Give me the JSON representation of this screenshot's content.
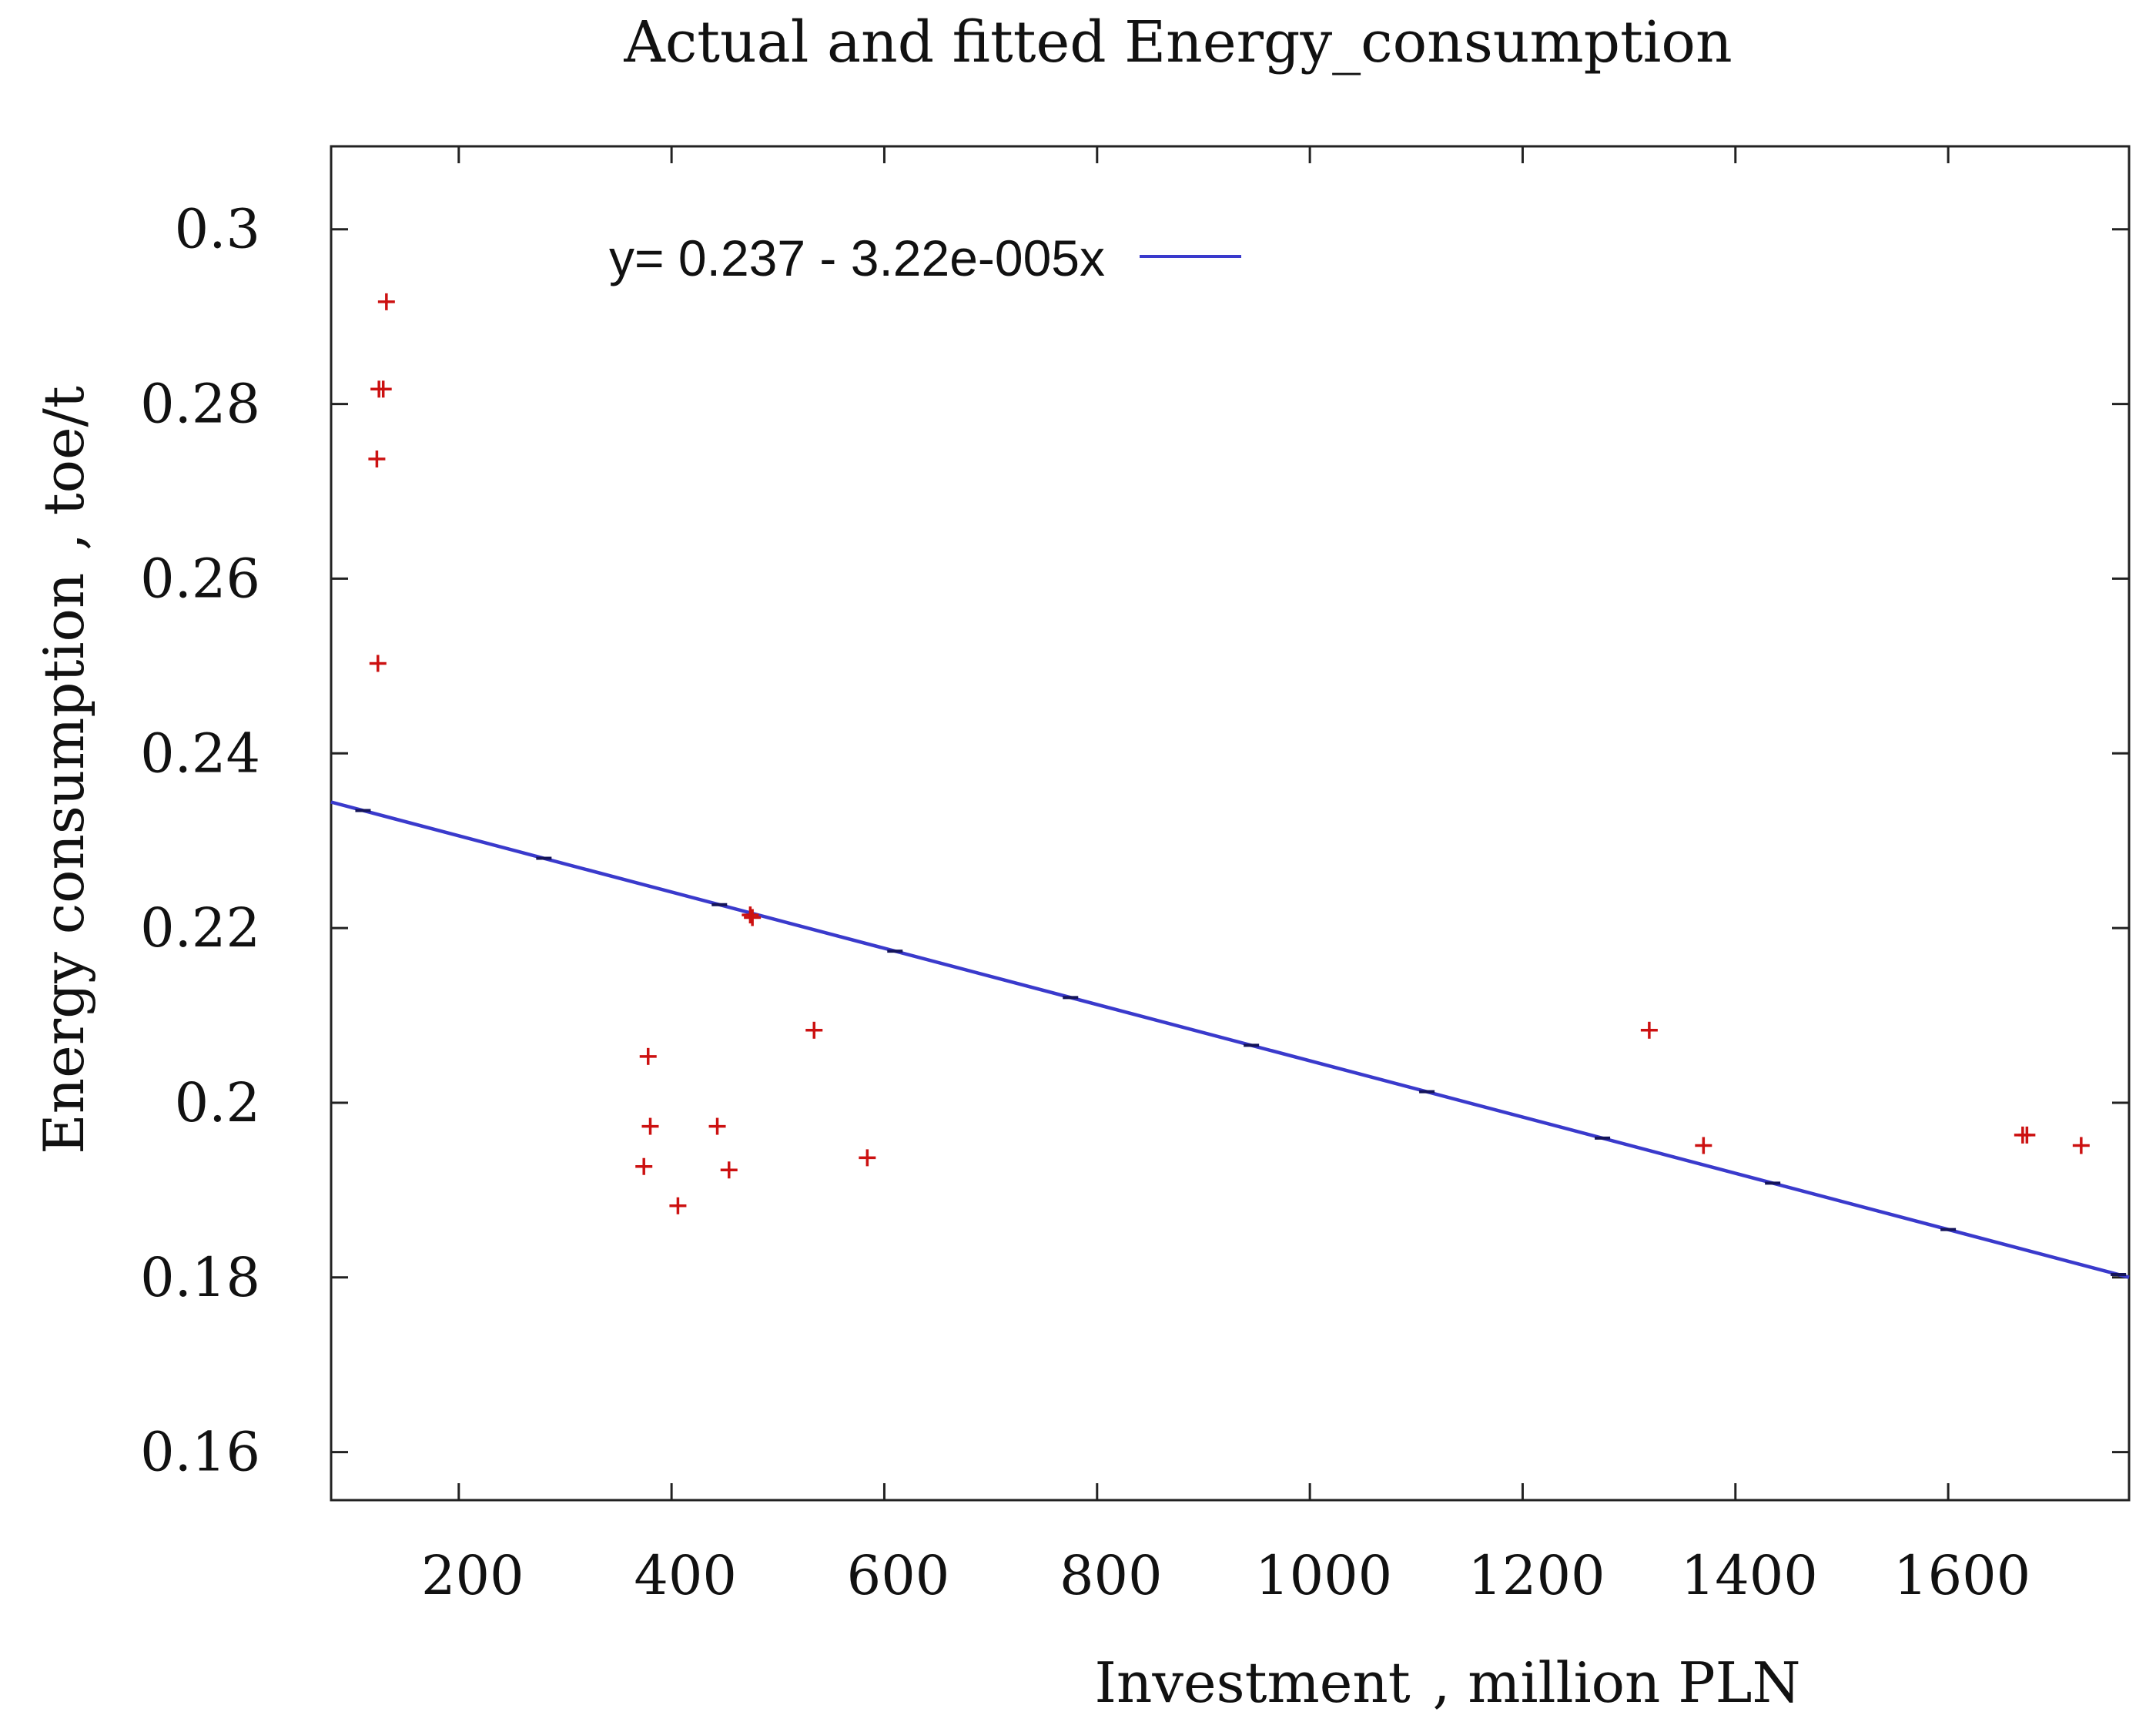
{
  "chart_data": {
    "type": "scatter",
    "title": "Actual and fitted Energy_consumption",
    "xlabel": "Investment  , million PLN",
    "ylabel": "Energy consumption  , toe/t",
    "xlim": [
      80,
      1770
    ],
    "ylim": [
      0.1545,
      0.3095
    ],
    "x_ticks": [
      200,
      400,
      600,
      800,
      1000,
      1200,
      1400,
      1600
    ],
    "x_tick_labels": [
      "200",
      "400",
      "600",
      "800",
      "1000",
      "1200",
      "1400",
      "1600"
    ],
    "y_ticks": [
      0.16,
      0.18,
      0.2,
      0.22,
      0.24,
      0.26,
      0.28,
      0.3
    ],
    "y_tick_labels": [
      "0.16",
      "0.18",
      "0.2",
      "0.22",
      "0.24",
      "0.26",
      "0.28",
      "0.3"
    ],
    "grid": false,
    "legend_position": "top-left",
    "series": [
      {
        "name": "actual",
        "kind": "scatter",
        "marker": "plus",
        "color": "#cc1111",
        "points": [
          {
            "x": 132,
            "y": 0.2917
          },
          {
            "x": 125,
            "y": 0.2817
          },
          {
            "x": 129,
            "y": 0.2817
          },
          {
            "x": 123,
            "y": 0.2737
          },
          {
            "x": 124,
            "y": 0.2503
          },
          {
            "x": 378,
            "y": 0.2053
          },
          {
            "x": 380,
            "y": 0.1973
          },
          {
            "x": 374,
            "y": 0.1927
          },
          {
            "x": 406,
            "y": 0.1882
          },
          {
            "x": 443,
            "y": 0.1973
          },
          {
            "x": 454,
            "y": 0.1923
          },
          {
            "x": 474,
            "y": 0.2215
          },
          {
            "x": 476,
            "y": 0.2212
          },
          {
            "x": 534,
            "y": 0.2083
          },
          {
            "x": 584,
            "y": 0.1937
          },
          {
            "x": 1319,
            "y": 0.2083
          },
          {
            "x": 1370,
            "y": 0.1951
          },
          {
            "x": 1670,
            "y": 0.1963
          },
          {
            "x": 1674,
            "y": 0.1963
          },
          {
            "x": 1725,
            "y": 0.1951
          }
        ]
      },
      {
        "name": "fitted",
        "kind": "line",
        "color": "#3a3acc",
        "legend_label": "y= 0.237 - 3.22e-005x",
        "intercept": 0.237,
        "slope": -3.22e-05,
        "x_range": [
          80,
          1770
        ]
      }
    ]
  }
}
